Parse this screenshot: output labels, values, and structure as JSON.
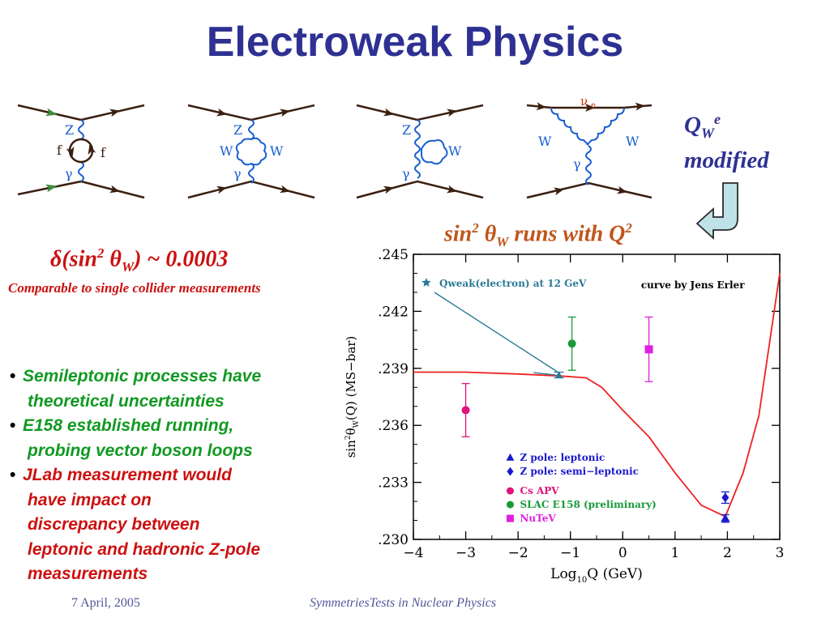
{
  "slide": {
    "title": "Electroweak Physics",
    "qw_line1_base": "Q",
    "qw_line1_sub": "W",
    "qw_line1_sup": "e",
    "qw_line2": "modified",
    "runs": {
      "pre": "sin",
      "sup": "2",
      "theta": "θ",
      "sub": "W",
      "mid": " runs with Q",
      "sup2": "2"
    },
    "delta": {
      "d": "δ",
      "open": "(sin",
      "sup": "2",
      "theta": " θ",
      "sub": "W",
      "close": ") ~ 0.0003"
    },
    "comparable": "Comparable to single collider measurements",
    "bullets": [
      {
        "lines": [
          "Semileptonic processes have",
          "theoretical uncertainties"
        ],
        "color": "#119922"
      },
      {
        "lines": [
          "E158 established running,",
          "probing vector boson loops"
        ],
        "color": "#119922"
      },
      {
        "lines": [
          "JLab measurement would",
          "have impact on",
          "discrepancy between",
          "leptonic and hadronic Z-pole",
          "measurements"
        ],
        "color": "#cc1111"
      }
    ],
    "footer_date": "7 April, 2005",
    "footer_center": "SymmetriesTests in Nuclear Physics"
  },
  "diagrams": {
    "d1": {
      "top": "Z",
      "bottom": "γ",
      "left": "f",
      "right": "f"
    },
    "d2": {
      "top": "Z",
      "bottom": "γ",
      "left": "W",
      "right": "W"
    },
    "d3": {
      "top": "Z",
      "bottom": "γ",
      "right": "W"
    },
    "d4": {
      "top": "ν",
      "top_sub": "e",
      "left": "W",
      "right": "W",
      "bottom": "γ"
    }
  },
  "chart_data": {
    "type": "scatter",
    "xlabel": "Log",
    "xlabel_sub": "10",
    "xlabel_rest": "Q  (GeV)",
    "ylabel": "sin²θ_W(Q)  (MS−bar)",
    "ylabel_parts": {
      "pre": "sin",
      "sup": "2",
      "theta": "θ",
      "sub": "W",
      "rest": "(Q)  (MS−bar)"
    },
    "xlim": [
      -4,
      3
    ],
    "ylim": [
      0.23,
      0.245
    ],
    "x_ticks": [
      -4,
      -3,
      -2,
      -1,
      0,
      1,
      2,
      3
    ],
    "x_tick_labels": [
      "−4",
      "−3",
      "−2",
      "−1",
      "0",
      "1",
      "2",
      "3"
    ],
    "y_ticks": [
      0.23,
      0.233,
      0.236,
      0.239,
      0.242,
      0.245
    ],
    "y_tick_labels": [
      ".230",
      ".233",
      ".236",
      ".239",
      ".242",
      ".245"
    ],
    "curve_label": "curve by Jens Erler",
    "curve": {
      "color": "#ee2222",
      "points": [
        [
          -4,
          0.2388
        ],
        [
          -3,
          0.2388
        ],
        [
          -2,
          0.2387
        ],
        [
          -1.2,
          0.2386
        ],
        [
          -0.7,
          0.2385
        ],
        [
          -0.4,
          0.238
        ],
        [
          0,
          0.2368
        ],
        [
          0.5,
          0.2354
        ],
        [
          1,
          0.2335
        ],
        [
          1.5,
          0.2318
        ],
        [
          1.96,
          0.2312
        ],
        [
          2.3,
          0.2335
        ],
        [
          2.6,
          0.2365
        ],
        [
          3,
          0.244
        ]
      ]
    },
    "qweak": {
      "label": "Qweak(electron) at 12 GeV",
      "x": -1.22,
      "y": 0.23865,
      "err": 0.00015,
      "color": "#2a7a96"
    },
    "legend": [
      {
        "label": "Z pole: leptonic",
        "marker": "triangle",
        "color": "#1a1acc"
      },
      {
        "label": "Z pole: semi−leptonic",
        "marker": "diamond",
        "color": "#1a1acc"
      },
      {
        "label": "Cs APV",
        "marker": "circle",
        "color": "#e0137a"
      },
      {
        "label": "SLAC E158 (preliminary)",
        "marker": "circle",
        "color": "#1a9a3a"
      },
      {
        "label": "NuTeV",
        "marker": "square",
        "color": "#e020e0"
      }
    ],
    "series": [
      {
        "name": "Cs APV",
        "marker": "circle",
        "color": "#e0137a",
        "points": [
          {
            "x": -3.0,
            "y": 0.2368,
            "err": 0.0014
          }
        ]
      },
      {
        "name": "SLAC E158 (preliminary)",
        "marker": "circle",
        "color": "#1a9a3a",
        "points": [
          {
            "x": -0.97,
            "y": 0.2403,
            "err": 0.0014
          }
        ]
      },
      {
        "name": "NuTeV",
        "marker": "square",
        "color": "#e020e0",
        "points": [
          {
            "x": 0.5,
            "y": 0.24,
            "err": 0.0017
          }
        ]
      },
      {
        "name": "Z pole: leptonic",
        "marker": "triangle",
        "color": "#1a1acc",
        "points": [
          {
            "x": 1.96,
            "y": 0.2311,
            "err": 0.0002
          }
        ]
      },
      {
        "name": "Z pole: semi−leptonic",
        "marker": "diamond",
        "color": "#1a1acc",
        "points": [
          {
            "x": 1.96,
            "y": 0.2322,
            "err": 0.0003
          }
        ]
      }
    ]
  }
}
